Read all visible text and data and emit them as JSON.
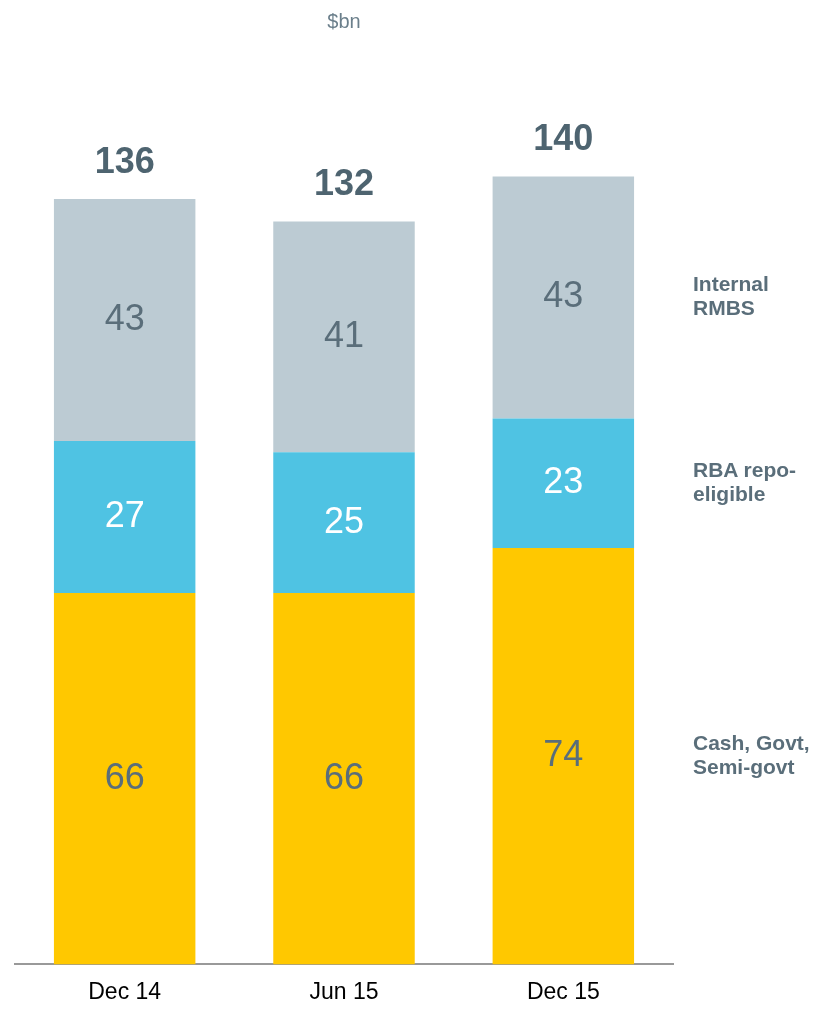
{
  "chart_data": {
    "type": "bar",
    "title": "$bn",
    "categories": [
      "Dec 14",
      "Jun 15",
      "Dec 15"
    ],
    "stacked": true,
    "data_labels": true,
    "tick_labels": "x",
    "grid": false,
    "series": [
      {
        "name": "Cash, Govt, Semi-govt",
        "color": "#ffc800",
        "values": [
          66,
          66,
          74
        ]
      },
      {
        "name": "RBA repo-eligible",
        "color": "#4fc3e3",
        "values": [
          27,
          25,
          23
        ]
      },
      {
        "name": "Internal RMBS",
        "color": "#bccbd3",
        "values": [
          43,
          41,
          43
        ]
      }
    ],
    "totals": [
      "136",
      "132",
      "140"
    ]
  }
}
